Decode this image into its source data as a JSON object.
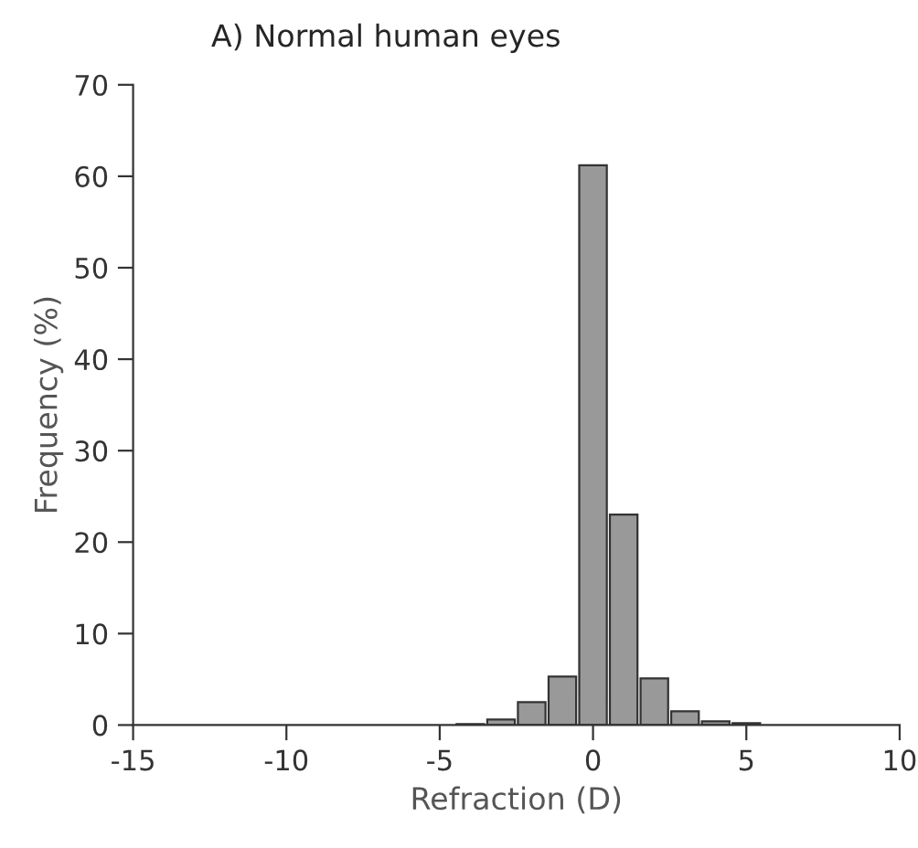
{
  "chart_data": {
    "type": "histogram",
    "title": "A) Normal human eyes",
    "xlabel": "Refraction (D)",
    "ylabel": "Frequency (%)",
    "bins": [
      -4.5,
      -3.5,
      -2.5,
      -1.5,
      -0.5,
      0.5,
      1.5,
      2.5,
      3.5,
      4.5,
      5.5
    ],
    "values": [
      0.1,
      0.6,
      2.5,
      5.3,
      61.2,
      23,
      5.1,
      1.5,
      0.4,
      0.2
    ],
    "color": "#999999",
    "xlim": [
      -15,
      10
    ],
    "xticks": [
      -15,
      -10,
      -5,
      0,
      5,
      10
    ],
    "ylim": [
      0,
      70
    ],
    "yticks": [
      0,
      10,
      20,
      30,
      40,
      50,
      60,
      70
    ],
    "grid": false
  }
}
